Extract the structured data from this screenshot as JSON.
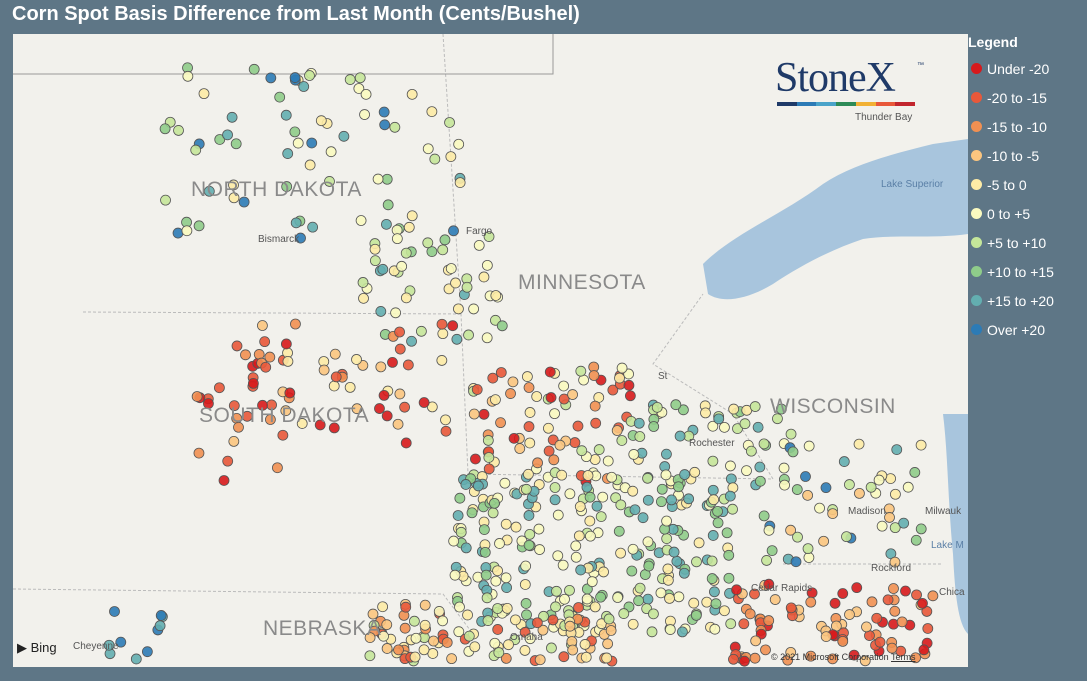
{
  "title": "Corn Spot Basis Difference from Last Month (Cents/Bushel)",
  "legend": {
    "title": "Legend",
    "items": [
      {
        "label": "Under -20",
        "color": "#d7191c"
      },
      {
        "label": "-20 to -15",
        "color": "#e8583a"
      },
      {
        "label": "-15 to -10",
        "color": "#f19052"
      },
      {
        "label": "-10 to -5",
        "color": "#fbc57f"
      },
      {
        "label": "-5 to 0",
        "color": "#fdeba6"
      },
      {
        "label": "0 to +5",
        "color": "#fafac0"
      },
      {
        "label": "+5 to +10",
        "color": "#c5e69a"
      },
      {
        "label": "+10 to +15",
        "color": "#8fcc8a"
      },
      {
        "label": "+15 to +20",
        "color": "#63aeb0"
      },
      {
        "label": "Over +20",
        "color": "#2c7bb6"
      }
    ]
  },
  "map": {
    "states": [
      "NORTH DAKOTA",
      "MINNESOTA",
      "SOUTH DAKOTA",
      "WISCONSIN",
      "NEBRASKA"
    ],
    "cities": [
      "Fargo",
      "Bismarck",
      "Thunder Bay",
      "St",
      "Rochester",
      "Madison",
      "Milwauk",
      "Rockford",
      "Chica",
      "Cedar Rapids",
      "Omaha",
      "Cheyenne"
    ],
    "water": [
      "Lake Superior",
      "Lake M"
    ],
    "logo": "StoneX",
    "logo_tm": "™",
    "logo_colors": [
      "#1f3a68",
      "#2c7bb6",
      "#4aa3c9",
      "#2e8b57",
      "#f2b134",
      "#e8583a",
      "#c2262e"
    ],
    "bing": "Bing",
    "copyright": "© 2021 Microsoft Corporation",
    "terms": "Terms"
  }
}
